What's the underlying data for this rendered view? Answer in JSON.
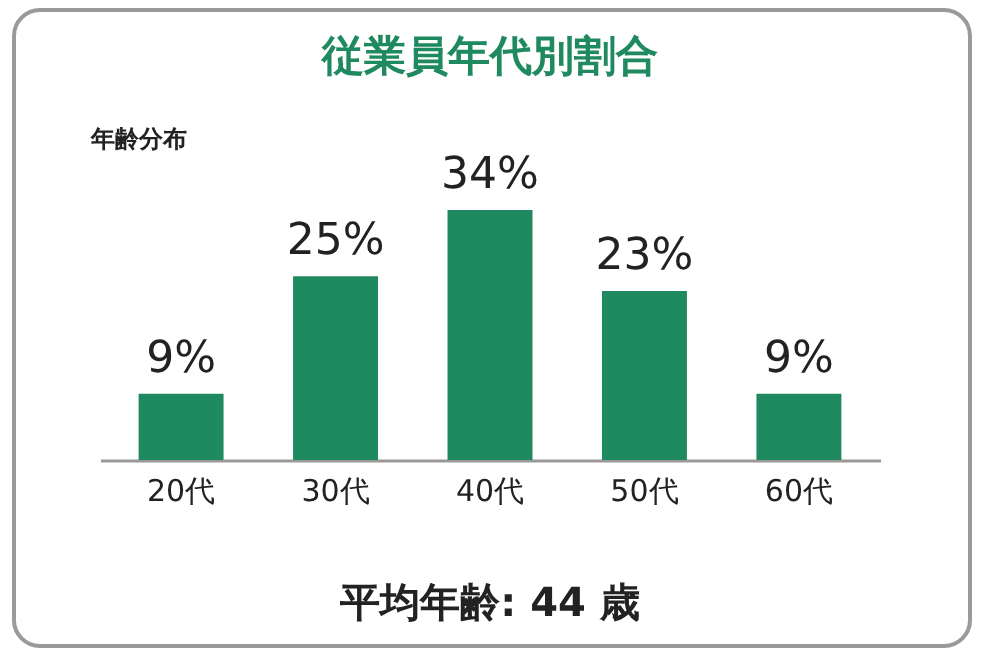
{
  "chart_data": {
    "type": "bar",
    "title": "従業員年代別割合",
    "ylabel": "年齢分布",
    "categories": [
      "20代",
      "30代",
      "40代",
      "50代",
      "60代"
    ],
    "values": [
      9,
      25,
      34,
      23,
      9
    ],
    "value_labels": [
      "9%",
      "25%",
      "34%",
      "23%",
      "9%"
    ],
    "color": "#1f8a5f",
    "annotations": [
      "平均年齢: 44 歳"
    ]
  }
}
